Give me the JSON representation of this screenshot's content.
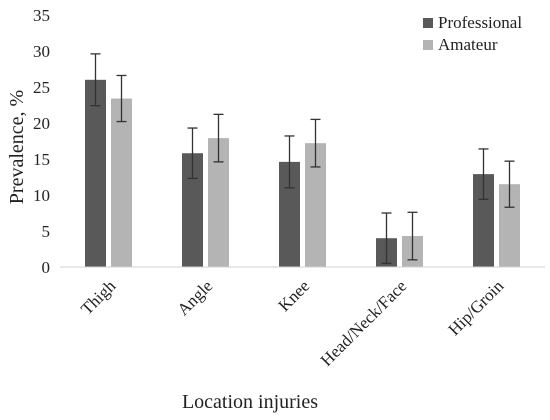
{
  "chart_data": {
    "type": "bar",
    "categories": [
      "Thigh",
      "Angle",
      "Knee",
      "Head/Neck/Face",
      "Hip/Groin"
    ],
    "series": [
      {
        "name": "Professional",
        "color": "#595959",
        "values": [
          26.0,
          15.8,
          14.6,
          4.0,
          12.9
        ],
        "errors": [
          3.6,
          3.5,
          3.6,
          3.5,
          3.5
        ]
      },
      {
        "name": "Amateur",
        "color": "#b4b4b4",
        "values": [
          23.4,
          17.9,
          17.2,
          4.3,
          11.5
        ],
        "errors": [
          3.2,
          3.3,
          3.3,
          3.3,
          3.2
        ]
      }
    ],
    "xlabel": "Location injuries",
    "ylabel": "Prevalence, %",
    "ylim": [
      0,
      35
    ],
    "yticks": [
      0,
      5,
      10,
      15,
      20,
      25,
      30,
      35
    ],
    "grid": false,
    "legend_position": "top-right"
  }
}
